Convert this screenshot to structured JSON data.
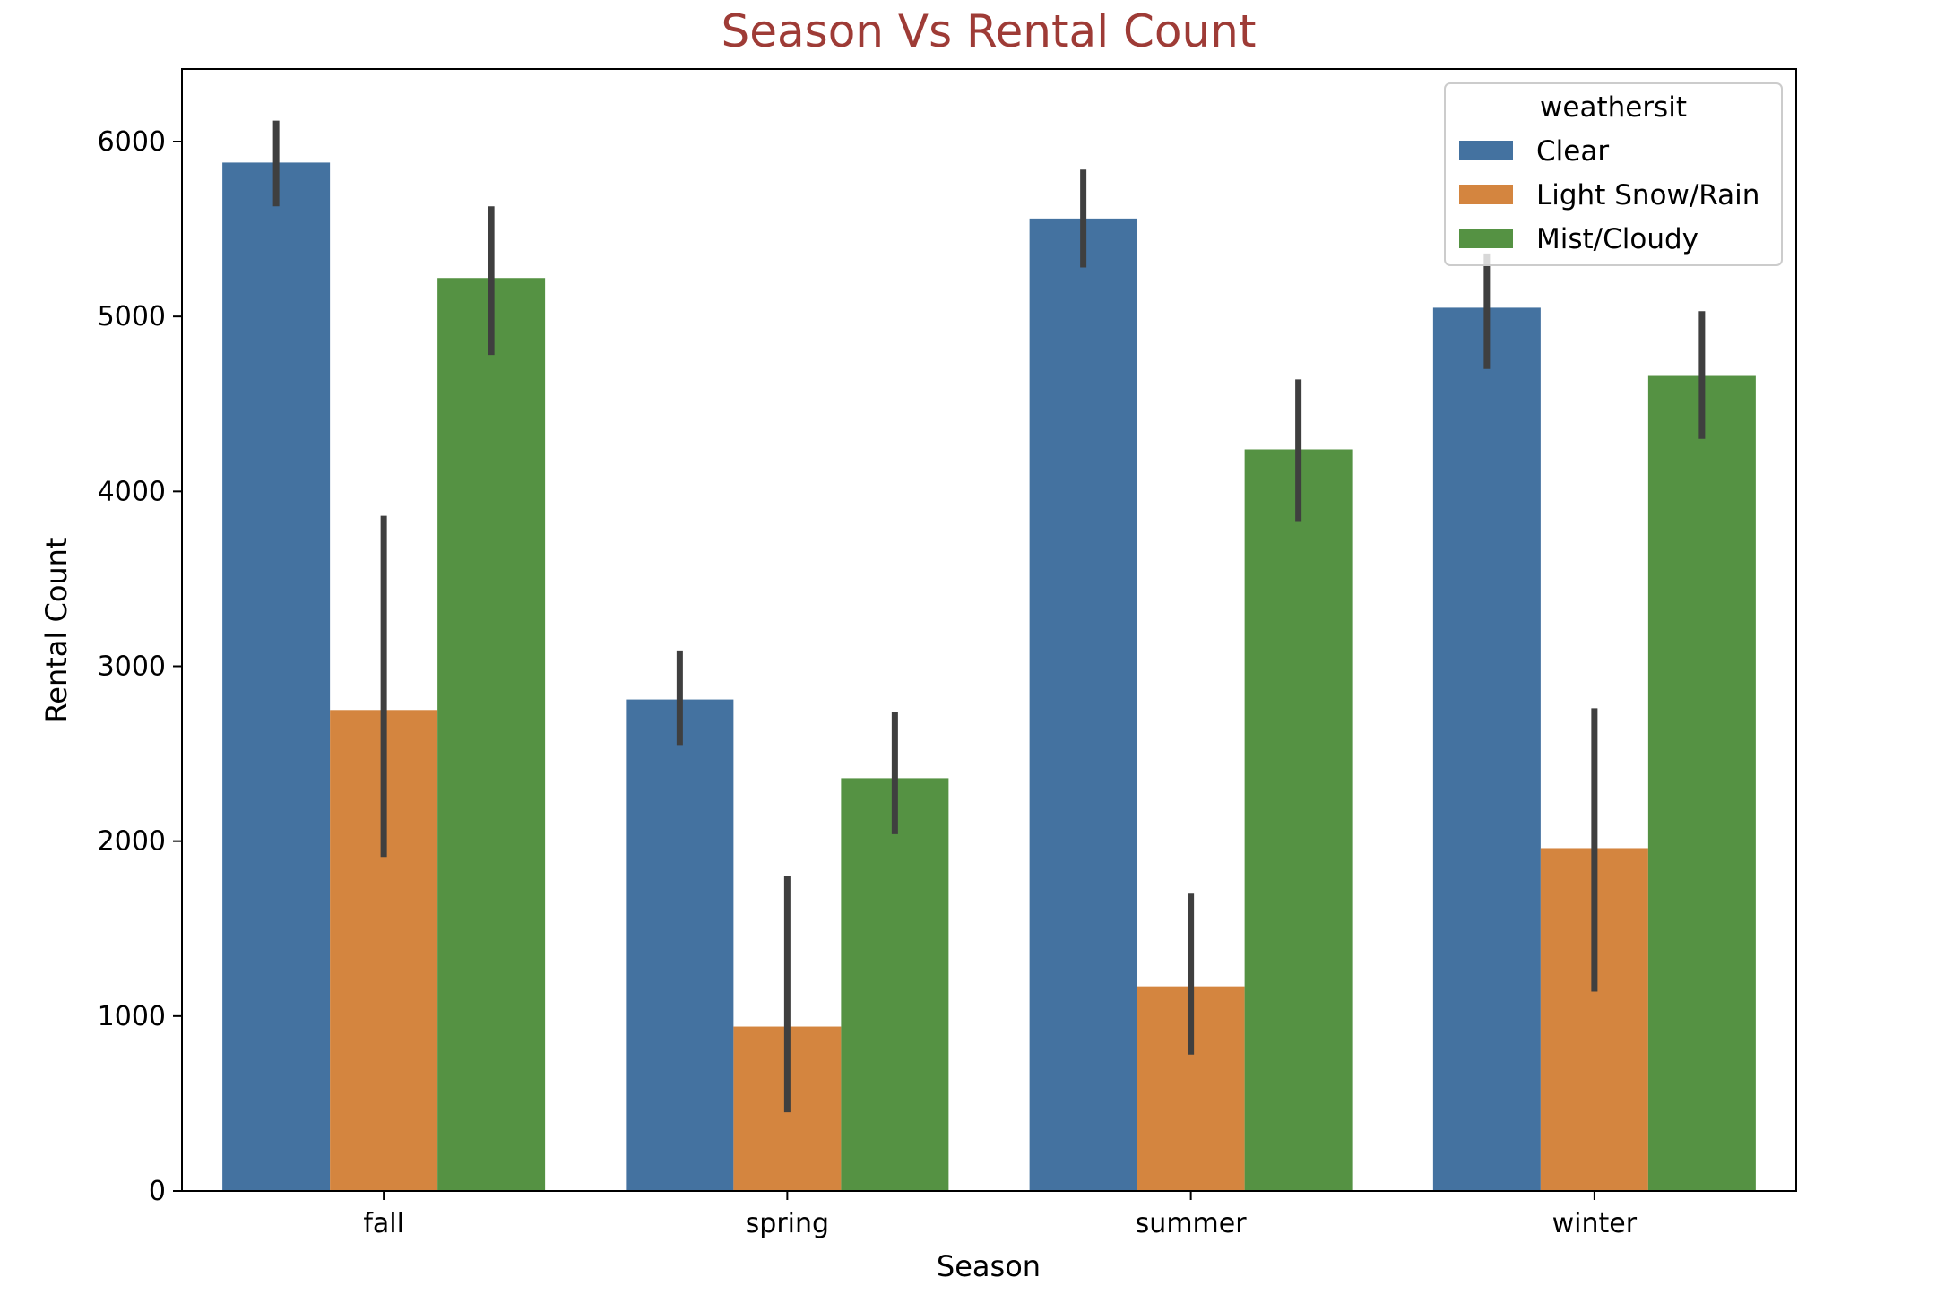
{
  "chart_data": {
    "type": "bar",
    "title": "Season Vs Rental Count",
    "title_color": "#9e3b36",
    "xlabel": "Season",
    "ylabel": "Rental Count",
    "categories": [
      "fall",
      "spring",
      "summer",
      "winter"
    ],
    "ylim": [
      0,
      6400
    ],
    "yticks": [
      0,
      1000,
      2000,
      3000,
      4000,
      5000,
      6000
    ],
    "legend": {
      "title": "weathersit",
      "placement": "top-right"
    },
    "series": [
      {
        "name": "Clear",
        "color": "#4472a0",
        "values": [
          5880,
          2810,
          5560,
          5050
        ],
        "err_low": [
          5630,
          2550,
          5280,
          4700
        ],
        "err_high": [
          6120,
          3090,
          5840,
          5360
        ]
      },
      {
        "name": "Light Snow/Rain",
        "color": "#d4853f",
        "values": [
          2750,
          940,
          1170,
          1960
        ],
        "err_low": [
          1910,
          450,
          780,
          1140
        ],
        "err_high": [
          3860,
          1800,
          1700,
          2760
        ]
      },
      {
        "name": "Mist/Cloudy",
        "color": "#559243",
        "values": [
          5220,
          2360,
          4240,
          4660
        ],
        "err_low": [
          4780,
          2040,
          3830,
          4300
        ],
        "err_high": [
          5630,
          2740,
          4640,
          5030
        ]
      }
    ]
  }
}
